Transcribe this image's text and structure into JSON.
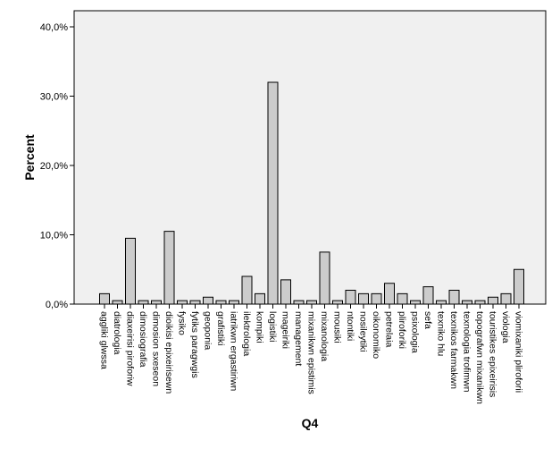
{
  "chart_data": {
    "type": "bar",
    "xlabel": "Q4",
    "ylabel": "Percent",
    "ylim": [
      0,
      42
    ],
    "yticks": [
      0,
      10,
      20,
      30,
      40
    ],
    "ytick_labels": [
      "0,0%",
      "10,0%",
      "20,0%",
      "30,0%",
      "40,0%"
    ],
    "grid": false,
    "colors": {
      "bar_fill": "#cccccc",
      "bar_stroke": "#000000",
      "plot_background": "#f0f0f0"
    },
    "categories": [
      "aggliki glwssa",
      "diatrologia",
      "diaxeirisi piroforiw",
      "dimosiografia",
      "dimosion sxeseon",
      "dioikisi epixeirisewn",
      "fysiko",
      "fytiks paragwgis",
      "geoponia",
      "grafistiki",
      "iatrikwn ergastiriwn",
      "ilektrologia",
      "kompiki",
      "logistiki",
      "mageiriki",
      "management",
      "mixanikwn epistimis",
      "mixanologia",
      "mousiki",
      "ntontiki",
      "nosileytiki",
      "oikonomiko",
      "petrelaia",
      "pliroforiki",
      "psixologia",
      "sefa",
      "texniko hlu",
      "texnikos farmakwn",
      "texnologia trofimwn",
      "topografwn mixanikwn",
      "touristikes epixeirisis",
      "viologia",
      "viomixaniki pliroforii"
    ],
    "values": [
      1.5,
      0.5,
      9.5,
      0.5,
      0.5,
      10.5,
      0.5,
      0.5,
      1.0,
      0.5,
      0.5,
      4.0,
      1.5,
      32.0,
      3.5,
      0.5,
      0.5,
      7.5,
      0.5,
      2.0,
      1.5,
      1.5,
      3.0,
      1.5,
      0.5,
      2.5,
      0.5,
      2.0,
      0.5,
      0.5,
      1.0,
      1.5,
      5.0
    ]
  }
}
